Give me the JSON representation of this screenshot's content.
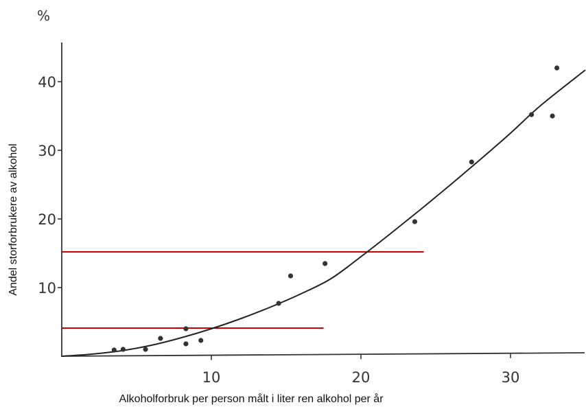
{
  "chart_data": {
    "type": "scatter",
    "ylabel": "Andel storforbrukere av alkohol",
    "xlabel": "Alkoholforbruk per person målt i liter ren alkohol per år",
    "y_unit": "%",
    "xlim": [
      0,
      35
    ],
    "ylim": [
      0,
      45
    ],
    "x_ticks": [
      10,
      20,
      30
    ],
    "y_ticks": [
      10,
      20,
      30,
      40
    ],
    "grid": false,
    "points": [
      {
        "x": 3.5,
        "y": 0.9
      },
      {
        "x": 4.1,
        "y": 1.0
      },
      {
        "x": 5.6,
        "y": 1.0
      },
      {
        "x": 6.6,
        "y": 2.6
      },
      {
        "x": 8.3,
        "y": 1.8
      },
      {
        "x": 8.3,
        "y": 4.0
      },
      {
        "x": 9.3,
        "y": 2.3
      },
      {
        "x": 14.5,
        "y": 7.7
      },
      {
        "x": 15.3,
        "y": 11.7
      },
      {
        "x": 17.6,
        "y": 13.5
      },
      {
        "x": 23.6,
        "y": 19.6
      },
      {
        "x": 27.4,
        "y": 28.3
      },
      {
        "x": 31.4,
        "y": 35.2
      },
      {
        "x": 32.8,
        "y": 35.0
      },
      {
        "x": 33.1,
        "y": 42.0
      }
    ],
    "trend_curve": [
      {
        "x": 0,
        "y": 0
      },
      {
        "x": 2,
        "y": 0.3
      },
      {
        "x": 4,
        "y": 0.8
      },
      {
        "x": 6,
        "y": 1.6
      },
      {
        "x": 8,
        "y": 2.7
      },
      {
        "x": 10,
        "y": 4.0
      },
      {
        "x": 12,
        "y": 5.5
      },
      {
        "x": 14,
        "y": 7.2
      },
      {
        "x": 16,
        "y": 9.1
      },
      {
        "x": 18,
        "y": 11.3
      },
      {
        "x": 20,
        "y": 14.5
      },
      {
        "x": 22,
        "y": 17.9
      },
      {
        "x": 24,
        "y": 21.4
      },
      {
        "x": 26,
        "y": 25.0
      },
      {
        "x": 28,
        "y": 28.7
      },
      {
        "x": 30,
        "y": 32.5
      },
      {
        "x": 32,
        "y": 36.5
      },
      {
        "x": 35,
        "y": 41.7
      }
    ],
    "reference_lines": [
      {
        "y": 4.1,
        "x_start": 0,
        "x_end": 17.5,
        "color": "#cc0000"
      },
      {
        "y": 15.2,
        "x_start": 0,
        "x_end": 24.2,
        "color": "#cc0000"
      }
    ],
    "colors": {
      "points": "#333333",
      "curve": "#222222",
      "axes": "#333333"
    }
  }
}
